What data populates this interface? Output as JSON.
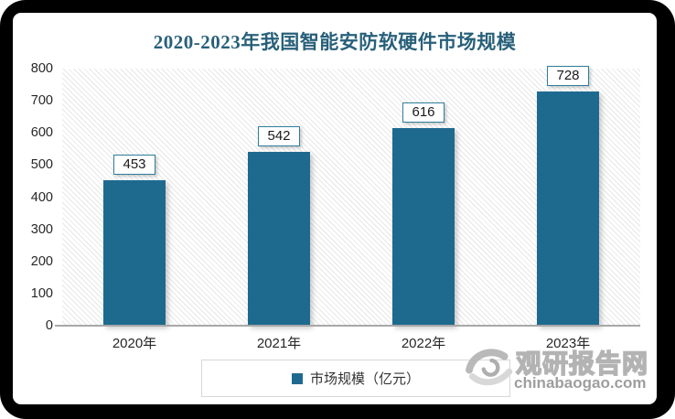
{
  "title": "2020-2023年我国智能安防软硬件市场规模",
  "colors": {
    "bar": "#1E6A8E",
    "title": "#28607A",
    "value_box_border": "#2E7E9A",
    "axis_line": "#a8a8a8",
    "watermark_gray": "#b3b3b3"
  },
  "chart_data": {
    "type": "bar",
    "title": "2020-2023年我国智能安防软硬件市场规模",
    "categories": [
      "2020年",
      "2021年",
      "2022年",
      "2023年"
    ],
    "values": [
      453,
      542,
      616,
      728
    ],
    "xlabel": "",
    "ylabel": "",
    "ylim": [
      0,
      800
    ],
    "ytick_step": 100,
    "grid": false,
    "plot_background": "diagonal-hatch",
    "legend_position": "bottom",
    "legend": [
      "市场规模（亿元）"
    ]
  },
  "legend": {
    "label": "市场规模（亿元）"
  },
  "watermark": {
    "logo": "swirl-logo-icon",
    "site_name": "观研报告网",
    "site_url": "chinabaogao.com"
  }
}
